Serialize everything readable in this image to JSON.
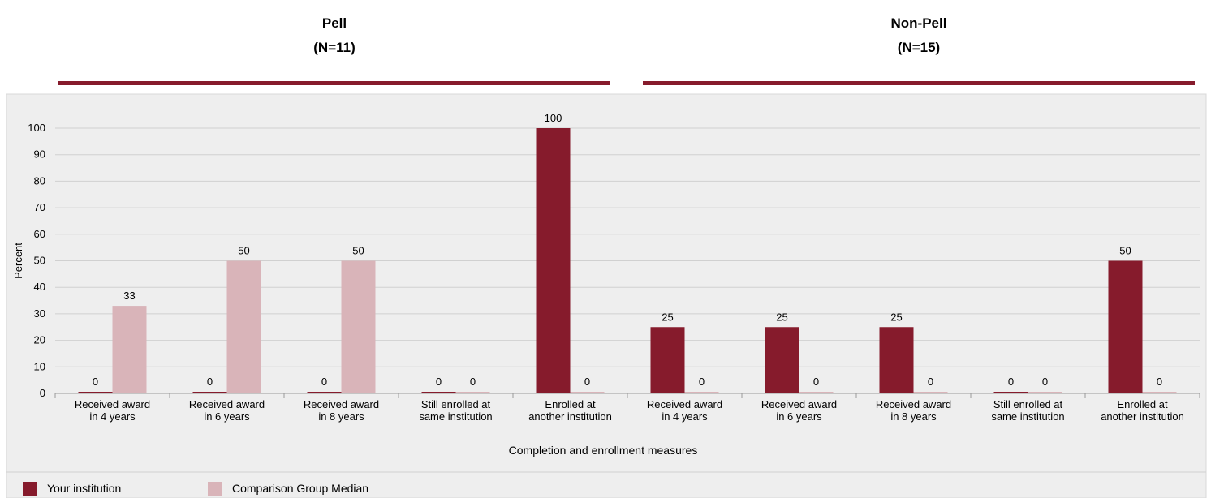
{
  "groups": [
    {
      "title": "Pell",
      "subtitle": "(N=11)"
    },
    {
      "title": "Non-Pell",
      "subtitle": "(N=15)"
    }
  ],
  "colors": {
    "your_institution": "#861B2C",
    "comparison_median": "#D9B4B9",
    "group_rule": "#861B2C",
    "plot_background": "#EEEEEE",
    "gridline": "#D0D0D0"
  },
  "legend": {
    "your_institution": "Your institution",
    "comparison_median": "Comparison Group Median"
  },
  "chart_data": {
    "type": "bar",
    "ylabel": "Percent",
    "xlabel": "Completion and enrollment measures",
    "ylim": [
      0,
      100
    ],
    "yticks": [
      0,
      10,
      20,
      30,
      40,
      50,
      60,
      70,
      80,
      90,
      100
    ],
    "grid": true,
    "legend_position": "bottom",
    "categories": [
      [
        "Received award",
        "in 4 years"
      ],
      [
        "Received award",
        "in 6 years"
      ],
      [
        "Received award",
        "in 8 years"
      ],
      [
        "Still enrolled at",
        "same institution"
      ],
      [
        "Enrolled at",
        "another institution"
      ],
      [
        "Received award",
        "in 4 years"
      ],
      [
        "Received award",
        "in 6 years"
      ],
      [
        "Received award",
        "in 8 years"
      ],
      [
        "Still enrolled at",
        "same institution"
      ],
      [
        "Enrolled at",
        "another institution"
      ]
    ],
    "series": [
      {
        "name": "Your institution",
        "values": [
          0,
          0,
          0,
          0,
          100,
          25,
          25,
          25,
          0,
          50
        ]
      },
      {
        "name": "Comparison Group Median",
        "values": [
          33,
          50,
          50,
          0,
          0,
          0,
          0,
          0,
          0,
          0
        ]
      }
    ]
  }
}
